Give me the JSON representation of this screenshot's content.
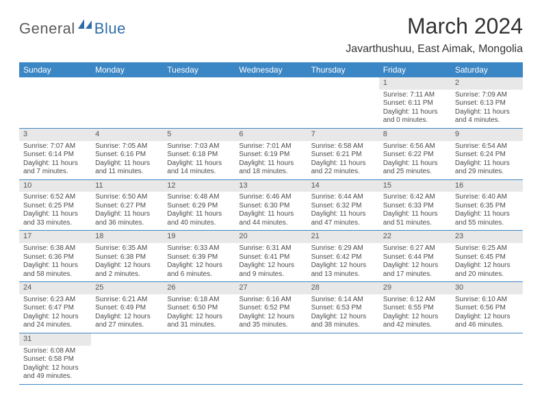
{
  "logo": {
    "part1": "General",
    "part2": "Blue"
  },
  "title": "March 2024",
  "location": "Javarthushuu, East Aimak, Mongolia",
  "colors": {
    "header_bg": "#3b86c4",
    "header_fg": "#ffffff",
    "daynum_bg": "#e8e8e8",
    "row_border": "#3b86c4",
    "logo_gray": "#5a5a5a",
    "logo_blue": "#2e6ca8"
  },
  "weekdays": [
    "Sunday",
    "Monday",
    "Tuesday",
    "Wednesday",
    "Thursday",
    "Friday",
    "Saturday"
  ],
  "weeks": [
    [
      null,
      null,
      null,
      null,
      null,
      {
        "n": "1",
        "sr": "Sunrise: 7:11 AM",
        "ss": "Sunset: 6:11 PM",
        "dl": "Daylight: 11 hours and 0 minutes."
      },
      {
        "n": "2",
        "sr": "Sunrise: 7:09 AM",
        "ss": "Sunset: 6:13 PM",
        "dl": "Daylight: 11 hours and 4 minutes."
      }
    ],
    [
      {
        "n": "3",
        "sr": "Sunrise: 7:07 AM",
        "ss": "Sunset: 6:14 PM",
        "dl": "Daylight: 11 hours and 7 minutes."
      },
      {
        "n": "4",
        "sr": "Sunrise: 7:05 AM",
        "ss": "Sunset: 6:16 PM",
        "dl": "Daylight: 11 hours and 11 minutes."
      },
      {
        "n": "5",
        "sr": "Sunrise: 7:03 AM",
        "ss": "Sunset: 6:18 PM",
        "dl": "Daylight: 11 hours and 14 minutes."
      },
      {
        "n": "6",
        "sr": "Sunrise: 7:01 AM",
        "ss": "Sunset: 6:19 PM",
        "dl": "Daylight: 11 hours and 18 minutes."
      },
      {
        "n": "7",
        "sr": "Sunrise: 6:58 AM",
        "ss": "Sunset: 6:21 PM",
        "dl": "Daylight: 11 hours and 22 minutes."
      },
      {
        "n": "8",
        "sr": "Sunrise: 6:56 AM",
        "ss": "Sunset: 6:22 PM",
        "dl": "Daylight: 11 hours and 25 minutes."
      },
      {
        "n": "9",
        "sr": "Sunrise: 6:54 AM",
        "ss": "Sunset: 6:24 PM",
        "dl": "Daylight: 11 hours and 29 minutes."
      }
    ],
    [
      {
        "n": "10",
        "sr": "Sunrise: 6:52 AM",
        "ss": "Sunset: 6:25 PM",
        "dl": "Daylight: 11 hours and 33 minutes."
      },
      {
        "n": "11",
        "sr": "Sunrise: 6:50 AM",
        "ss": "Sunset: 6:27 PM",
        "dl": "Daylight: 11 hours and 36 minutes."
      },
      {
        "n": "12",
        "sr": "Sunrise: 6:48 AM",
        "ss": "Sunset: 6:29 PM",
        "dl": "Daylight: 11 hours and 40 minutes."
      },
      {
        "n": "13",
        "sr": "Sunrise: 6:46 AM",
        "ss": "Sunset: 6:30 PM",
        "dl": "Daylight: 11 hours and 44 minutes."
      },
      {
        "n": "14",
        "sr": "Sunrise: 6:44 AM",
        "ss": "Sunset: 6:32 PM",
        "dl": "Daylight: 11 hours and 47 minutes."
      },
      {
        "n": "15",
        "sr": "Sunrise: 6:42 AM",
        "ss": "Sunset: 6:33 PM",
        "dl": "Daylight: 11 hours and 51 minutes."
      },
      {
        "n": "16",
        "sr": "Sunrise: 6:40 AM",
        "ss": "Sunset: 6:35 PM",
        "dl": "Daylight: 11 hours and 55 minutes."
      }
    ],
    [
      {
        "n": "17",
        "sr": "Sunrise: 6:38 AM",
        "ss": "Sunset: 6:36 PM",
        "dl": "Daylight: 11 hours and 58 minutes."
      },
      {
        "n": "18",
        "sr": "Sunrise: 6:35 AM",
        "ss": "Sunset: 6:38 PM",
        "dl": "Daylight: 12 hours and 2 minutes."
      },
      {
        "n": "19",
        "sr": "Sunrise: 6:33 AM",
        "ss": "Sunset: 6:39 PM",
        "dl": "Daylight: 12 hours and 6 minutes."
      },
      {
        "n": "20",
        "sr": "Sunrise: 6:31 AM",
        "ss": "Sunset: 6:41 PM",
        "dl": "Daylight: 12 hours and 9 minutes."
      },
      {
        "n": "21",
        "sr": "Sunrise: 6:29 AM",
        "ss": "Sunset: 6:42 PM",
        "dl": "Daylight: 12 hours and 13 minutes."
      },
      {
        "n": "22",
        "sr": "Sunrise: 6:27 AM",
        "ss": "Sunset: 6:44 PM",
        "dl": "Daylight: 12 hours and 17 minutes."
      },
      {
        "n": "23",
        "sr": "Sunrise: 6:25 AM",
        "ss": "Sunset: 6:45 PM",
        "dl": "Daylight: 12 hours and 20 minutes."
      }
    ],
    [
      {
        "n": "24",
        "sr": "Sunrise: 6:23 AM",
        "ss": "Sunset: 6:47 PM",
        "dl": "Daylight: 12 hours and 24 minutes."
      },
      {
        "n": "25",
        "sr": "Sunrise: 6:21 AM",
        "ss": "Sunset: 6:49 PM",
        "dl": "Daylight: 12 hours and 27 minutes."
      },
      {
        "n": "26",
        "sr": "Sunrise: 6:18 AM",
        "ss": "Sunset: 6:50 PM",
        "dl": "Daylight: 12 hours and 31 minutes."
      },
      {
        "n": "27",
        "sr": "Sunrise: 6:16 AM",
        "ss": "Sunset: 6:52 PM",
        "dl": "Daylight: 12 hours and 35 minutes."
      },
      {
        "n": "28",
        "sr": "Sunrise: 6:14 AM",
        "ss": "Sunset: 6:53 PM",
        "dl": "Daylight: 12 hours and 38 minutes."
      },
      {
        "n": "29",
        "sr": "Sunrise: 6:12 AM",
        "ss": "Sunset: 6:55 PM",
        "dl": "Daylight: 12 hours and 42 minutes."
      },
      {
        "n": "30",
        "sr": "Sunrise: 6:10 AM",
        "ss": "Sunset: 6:56 PM",
        "dl": "Daylight: 12 hours and 46 minutes."
      }
    ],
    [
      {
        "n": "31",
        "sr": "Sunrise: 6:08 AM",
        "ss": "Sunset: 6:58 PM",
        "dl": "Daylight: 12 hours and 49 minutes."
      },
      null,
      null,
      null,
      null,
      null,
      null
    ]
  ]
}
